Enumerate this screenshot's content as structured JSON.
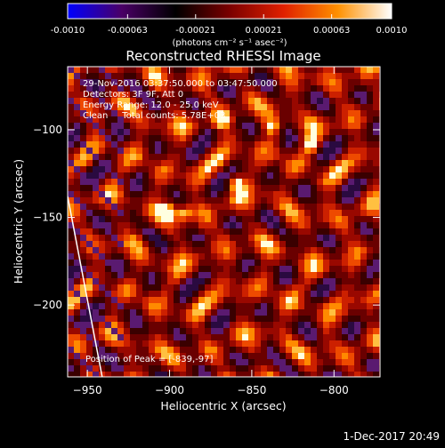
{
  "colorbar": {
    "tick_labels": [
      "-0.0010",
      "-0.00063",
      "-0.00021",
      "0.00021",
      "0.00063",
      "0.0010"
    ],
    "tick_values": [
      -0.001,
      -0.00063,
      -0.00021,
      0.00021,
      0.00063,
      0.001
    ],
    "range": [
      -0.001,
      0.001
    ],
    "units_label": "(photons cm⁻² s⁻¹ asec⁻²)",
    "colormap_stops": [
      "#0000ff",
      "#4a0066",
      "#000000",
      "#7a0000",
      "#e02000",
      "#ff9000",
      "#ffffff"
    ]
  },
  "chart_data": {
    "type": "heatmap",
    "title": "Reconstructed RHESSI Image",
    "xlabel": "Heliocentric X (arcsec)",
    "ylabel": "Heliocentric Y (arcsec)",
    "xlim": [
      -962,
      -772
    ],
    "ylim": [
      -241,
      -64
    ],
    "x_ticks": [
      -950,
      -900,
      -850,
      -800
    ],
    "y_ticks": [
      -100,
      -150,
      -200
    ],
    "limb_line": {
      "x": [
        -962,
        -941
      ],
      "y": [
        -138,
        -241
      ]
    },
    "peak_markers": [
      {
        "x": -870,
        "y": -93
      },
      {
        "x": -839,
        "y": -97
      },
      {
        "x": -893,
        "y": -146
      },
      {
        "x": -903,
        "y": -144
      },
      {
        "x": -816,
        "y": -107
      },
      {
        "x": -862,
        "y": -128
      }
    ],
    "annotations": [
      "29-Nov-2016 03:37:50.000 to 03:47:50.000",
      "Detectors: 3F 9F, Att 0",
      "Energy Range: 12.0 - 25.0 keV",
      "Clean     Total counts: 5.78E+03"
    ],
    "peak_text": "Position of Peak = [-839,-97]"
  },
  "footer_timestamp": "1-Dec-2017 20:49"
}
